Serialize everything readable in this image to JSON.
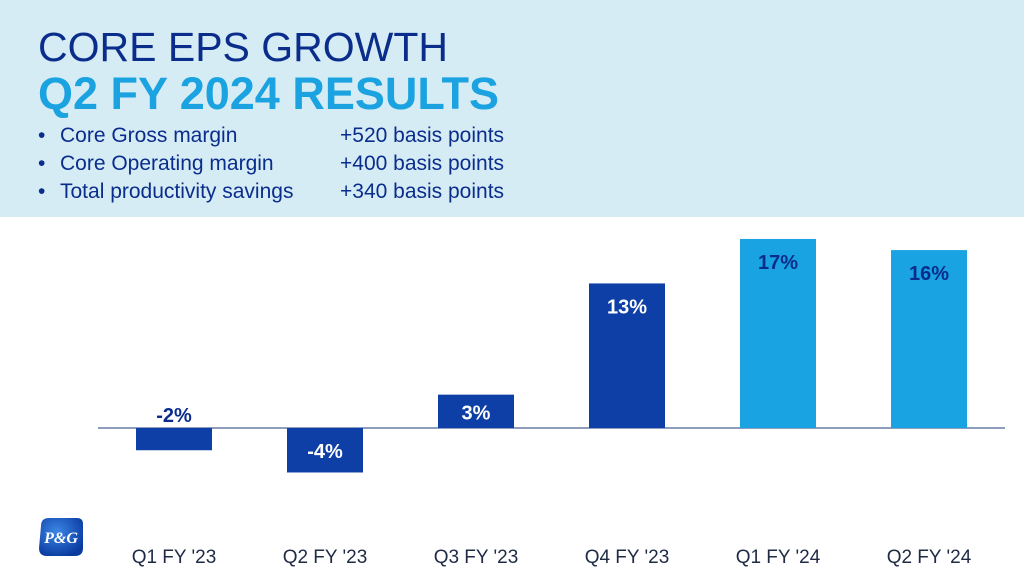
{
  "header": {
    "title_line1": "CORE EPS GROWTH",
    "title_line2": "Q2 FY 2024 RESULTS",
    "bullets": [
      {
        "label": "Core Gross margin",
        "value": "+520 basis points"
      },
      {
        "label": "Core Operating margin",
        "value": "+400 basis points"
      },
      {
        "label": "Total productivity savings",
        "value": "+340 basis points"
      }
    ]
  },
  "logo": {
    "text": "P&G",
    "color": "#1a4fb5"
  },
  "colors": {
    "dark_bar": "#0d3fa6",
    "light_bar": "#19a3e3",
    "header_bg": "#d6ecf4"
  },
  "chart_data": {
    "type": "bar",
    "title": "",
    "xlabel": "",
    "ylabel": "",
    "categories": [
      "Q1 FY '23",
      "Q2 FY '23",
      "Q3 FY '23",
      "Q4 FY '23",
      "Q1 FY '24",
      "Q2 FY '24"
    ],
    "values": [
      -2,
      -4,
      3,
      13,
      17,
      16
    ],
    "data_labels": [
      "-2%",
      "-4%",
      "3%",
      "13%",
      "17%",
      "16%"
    ],
    "bar_colors": [
      "#0d3fa6",
      "#0d3fa6",
      "#0d3fa6",
      "#0d3fa6",
      "#19a3e3",
      "#19a3e3"
    ],
    "ylim": [
      -4,
      17
    ],
    "grid": false,
    "legend": "none"
  }
}
